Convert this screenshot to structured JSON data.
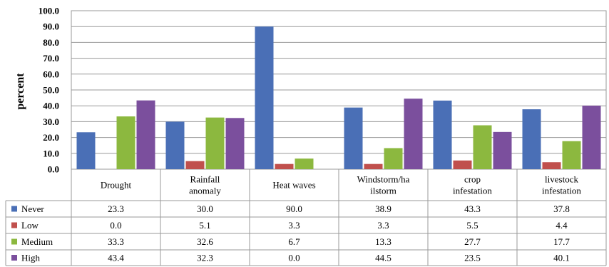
{
  "chart_data": {
    "type": "bar",
    "title": "",
    "xlabel": "",
    "ylabel": "percent",
    "ylim": [
      0,
      100
    ],
    "yticks": [
      "0.0",
      "10.0",
      "20.0",
      "30.0",
      "40.0",
      "50.0",
      "60.0",
      "70.0",
      "80.0",
      "90.0",
      "100.0"
    ],
    "grid": true,
    "legend": "data-table-left",
    "categories": [
      [
        "Drought"
      ],
      [
        "Rainfall",
        "anomaly"
      ],
      [
        "Heat waves"
      ],
      [
        "Windstorm/ha",
        "ilstorm"
      ],
      [
        "crop",
        "infestation"
      ],
      [
        "livestock",
        "infestation"
      ]
    ],
    "series": [
      {
        "name": "Never",
        "color": "#4a6fb6",
        "values": [
          23.3,
          30.0,
          90.0,
          38.9,
          43.3,
          37.8
        ],
        "labels": [
          "23.3",
          "30.0",
          "90.0",
          "38.9",
          "43.3",
          "37.8"
        ]
      },
      {
        "name": "Low",
        "color": "#c0504d",
        "values": [
          0.0,
          5.1,
          3.3,
          3.3,
          5.5,
          4.4
        ],
        "labels": [
          "0.0",
          "5.1",
          "3.3",
          "3.3",
          "5.5",
          "4.4"
        ]
      },
      {
        "name": "Medium",
        "color": "#8cb83f",
        "values": [
          33.3,
          32.6,
          6.7,
          13.3,
          27.7,
          17.7
        ],
        "labels": [
          "33.3",
          "32.6",
          "6.7",
          "13.3",
          "27.7",
          "17.7"
        ]
      },
      {
        "name": "High",
        "color": "#7b4f9d",
        "values": [
          43.4,
          32.3,
          0.0,
          44.5,
          23.5,
          40.1
        ],
        "labels": [
          "43.4",
          "32.3",
          "0.0",
          "44.5",
          "23.5",
          "40.1"
        ]
      }
    ]
  }
}
